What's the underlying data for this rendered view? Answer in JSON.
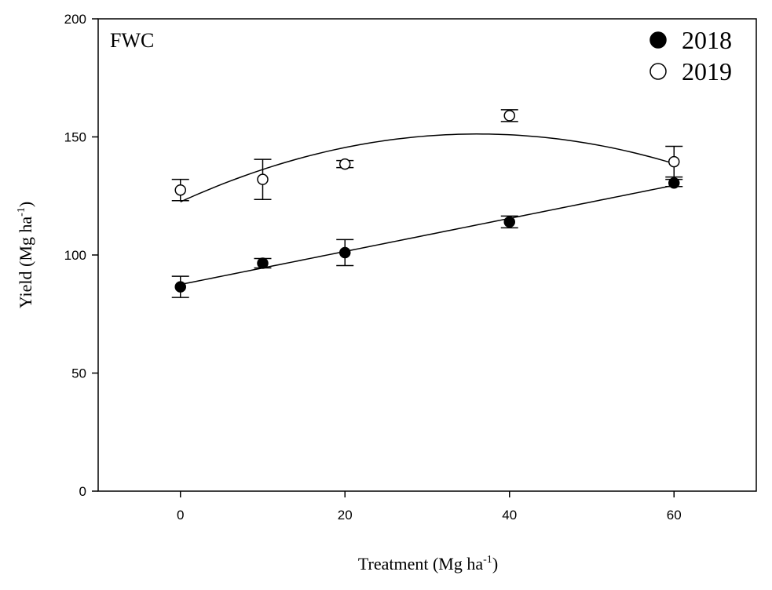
{
  "chart_data": {
    "type": "scatter",
    "panel_label": "FWC",
    "xlabel": "Treatment (Mg ha",
    "xlabel_sup": "-1",
    "xlabel_end": ")",
    "ylabel": "Yield (Mg ha",
    "ylabel_sup": "-1",
    "ylabel_end": ")",
    "xlim": [
      -10,
      70
    ],
    "ylim": [
      0,
      200
    ],
    "xticks": [
      0,
      20,
      40,
      60
    ],
    "yticks": [
      0,
      50,
      100,
      150,
      200
    ],
    "grid": false,
    "legend_position": "top-right",
    "series": [
      {
        "name": "2018",
        "marker": "filled-circle",
        "color": "#000000",
        "x": [
          0,
          10,
          20,
          40,
          60
        ],
        "y": [
          86.5,
          96.5,
          101,
          114,
          130.5
        ],
        "error": [
          4.5,
          2,
          5.5,
          2.5,
          1.5
        ],
        "fit": {
          "type": "linear",
          "coefficients": [
            87.5,
            0.7
          ]
        }
      },
      {
        "name": "2019",
        "marker": "open-circle",
        "color": "#000000",
        "x": [
          0,
          10,
          20,
          40,
          60
        ],
        "y": [
          127.5,
          132,
          138.5,
          159,
          139.5
        ],
        "error": [
          4.5,
          8.5,
          1.5,
          2.5,
          6.5
        ],
        "fit": {
          "type": "quadratic",
          "coefficients": [
            122.5,
            1.59,
            -0.022
          ]
        }
      }
    ]
  }
}
